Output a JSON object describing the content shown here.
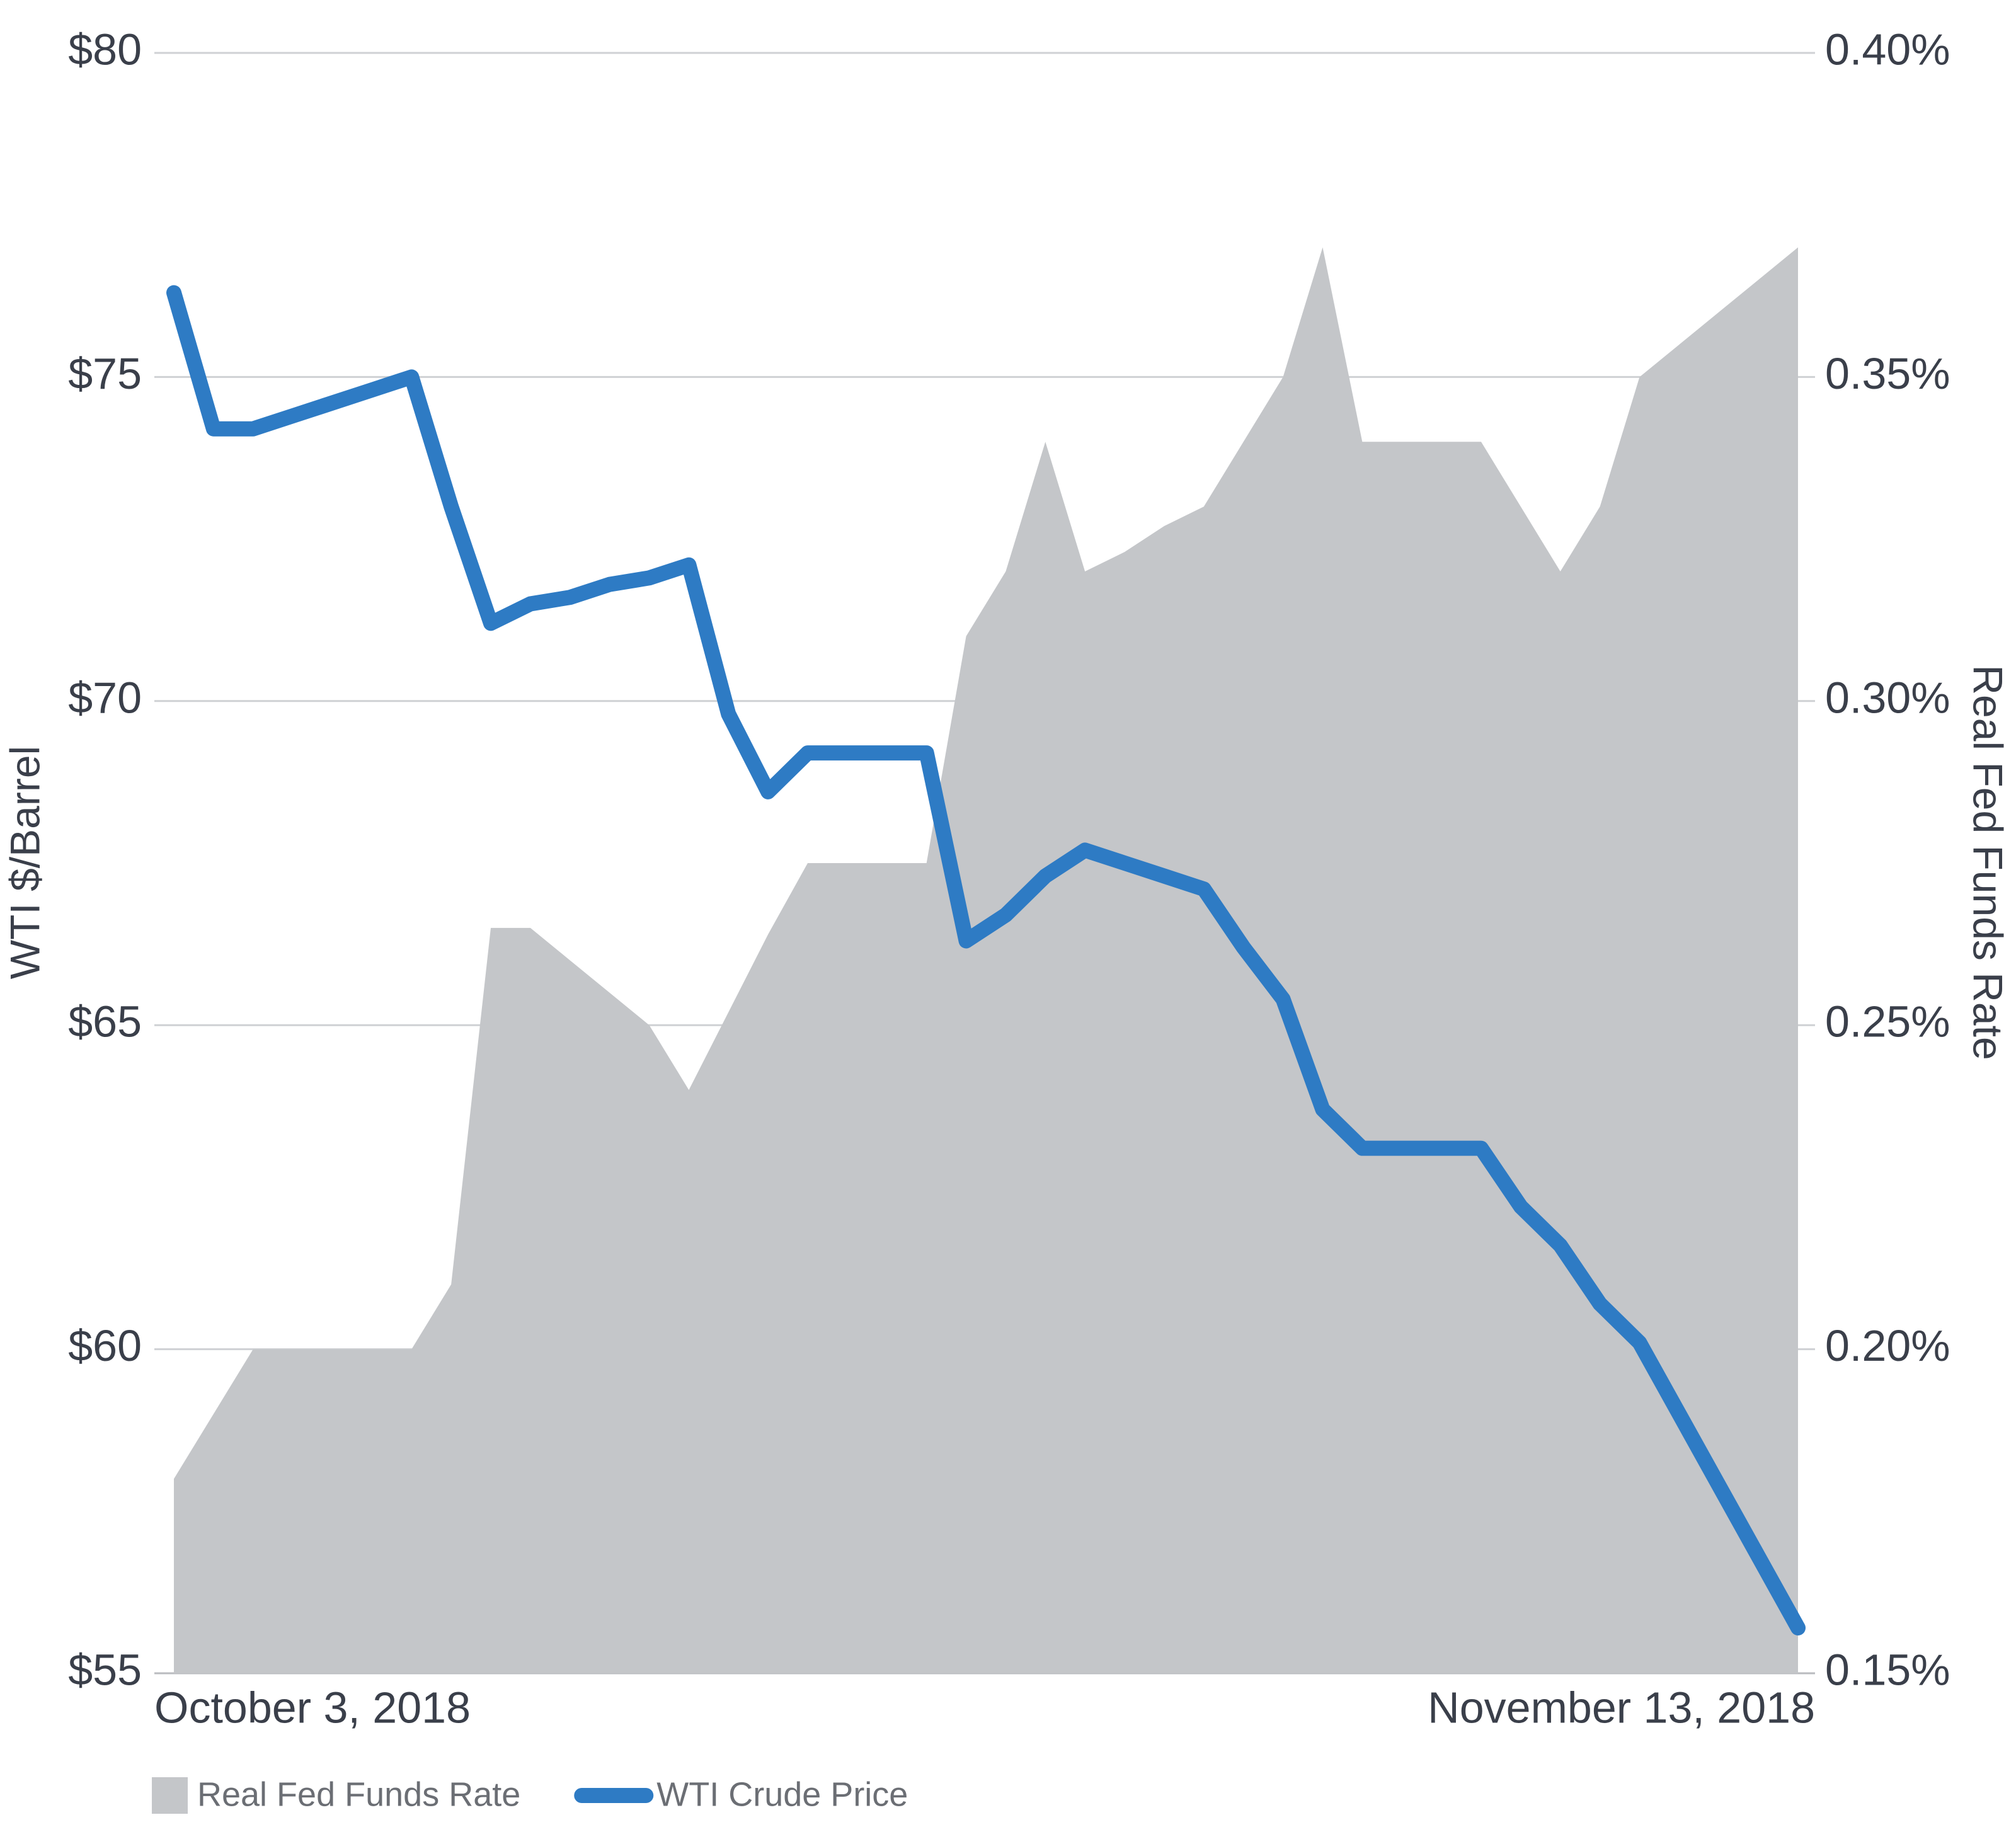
{
  "chart_data": {
    "type": "line",
    "categories": [
      "October 3, 2018",
      null,
      null,
      null,
      null,
      null,
      null,
      null,
      null,
      null,
      null,
      null,
      null,
      null,
      null,
      null,
      null,
      null,
      null,
      null,
      null,
      null,
      null,
      null,
      null,
      null,
      null,
      null,
      null,
      null,
      null,
      null,
      null,
      null,
      null,
      null,
      null,
      null,
      null,
      null,
      null,
      "November 13, 2018"
    ],
    "y_label": "WTI $/Barrel",
    "y2_label": "Real Fed Funds Rate",
    "ylim": [
      55,
      80
    ],
    "yticks": [
      {
        "value": 55,
        "label": "$55"
      },
      {
        "value": 60,
        "label": "$60"
      },
      {
        "value": 65,
        "label": "$65"
      },
      {
        "value": 70,
        "label": "$70"
      },
      {
        "value": 75,
        "label": "$75"
      },
      {
        "value": 80,
        "label": "$80"
      }
    ],
    "y2lim": [
      0.15,
      0.4
    ],
    "y2ticks": [
      {
        "value": 0.15,
        "label": "0.15%"
      },
      {
        "value": 0.2,
        "label": "0.20%"
      },
      {
        "value": 0.25,
        "label": "0.25%"
      },
      {
        "value": 0.3,
        "label": "0.30%"
      },
      {
        "value": 0.35,
        "label": "0.35%"
      },
      {
        "value": 0.4,
        "label": "0.40%"
      }
    ],
    "grid": true,
    "legend": "bottom-left",
    "series": [
      {
        "name": "Real Fed Funds Rate",
        "type": "area",
        "axis": "y2",
        "color": "#c4c6c9",
        "values": [
          0.18,
          0.19,
          0.2,
          0.2,
          0.2,
          0.2,
          0.2,
          0.21,
          0.265,
          0.265,
          0.26,
          0.255,
          0.25,
          0.24,
          0.252,
          0.264,
          0.275,
          0.275,
          0.275,
          0.275,
          0.31,
          0.32,
          0.34,
          0.32,
          0.323,
          0.327,
          0.33,
          0.34,
          0.35,
          0.37,
          0.34,
          0.34,
          0.34,
          0.34,
          0.33,
          0.32,
          0.33,
          0.35,
          0.355,
          0.36,
          0.365,
          0.37
        ]
      },
      {
        "name": "WTI Crude Price",
        "type": "line",
        "axis": "y",
        "color": "#2e7bc4",
        "values": [
          76.3,
          74.2,
          74.2,
          74.4,
          74.6,
          74.8,
          75.0,
          73.0,
          71.2,
          71.5,
          71.6,
          71.8,
          71.9,
          72.1,
          69.8,
          68.6,
          69.2,
          69.2,
          69.2,
          69.2,
          66.3,
          66.7,
          67.3,
          67.7,
          67.5,
          67.3,
          67.1,
          66.2,
          65.4,
          63.7,
          63.1,
          63.1,
          63.1,
          63.1,
          62.2,
          61.6,
          60.7,
          60.1,
          59.0,
          57.9,
          56.8,
          55.7
        ]
      }
    ]
  }
}
